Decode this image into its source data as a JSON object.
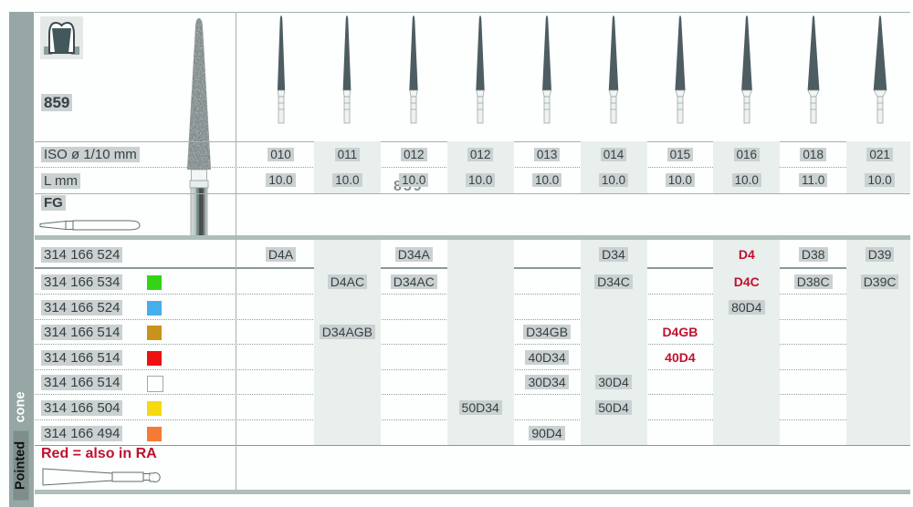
{
  "sidebar": {
    "word_top": "cone",
    "word_bottom": "Pointed"
  },
  "header": {
    "code": "859",
    "ghost_code": "859"
  },
  "row_labels": {
    "iso": "ISO ø 1/10 mm",
    "length": "L mm",
    "shank": "FG"
  },
  "columns": [
    {
      "iso": "010",
      "l": "10.0"
    },
    {
      "iso": "011",
      "l": "10.0"
    },
    {
      "iso": "012",
      "l": "10.0"
    },
    {
      "iso": "012",
      "l": "10.0"
    },
    {
      "iso": "013",
      "l": "10.0"
    },
    {
      "iso": "014",
      "l": "10.0"
    },
    {
      "iso": "015",
      "l": "10.0"
    },
    {
      "iso": "016",
      "l": "10.0"
    },
    {
      "iso": "018",
      "l": "11.0"
    },
    {
      "iso": "021",
      "l": "10.0"
    }
  ],
  "rows": [
    {
      "order": "314 166 524",
      "chip": null,
      "cells": [
        {
          "col": 1,
          "text": "D4A",
          "red": false
        },
        {
          "col": 3,
          "text": "D34A",
          "red": false
        },
        {
          "col": 6,
          "text": "D34",
          "red": false
        },
        {
          "col": 8,
          "text": "D4",
          "red": true
        },
        {
          "col": 9,
          "text": "D38",
          "red": false
        },
        {
          "col": 10,
          "text": "D39",
          "red": false
        }
      ]
    },
    {
      "order": "314 166 534",
      "chip": "#33d414",
      "cells": [
        {
          "col": 2,
          "text": "D4AC",
          "red": false
        },
        {
          "col": 3,
          "text": "D34AC",
          "red": false
        },
        {
          "col": 6,
          "text": "D34C",
          "red": false
        },
        {
          "col": 8,
          "text": "D4C",
          "red": true
        },
        {
          "col": 9,
          "text": "D38C",
          "red": false
        },
        {
          "col": 10,
          "text": "D39C",
          "red": false
        }
      ]
    },
    {
      "order": "314 166 524",
      "chip": "#46aee8",
      "cells": [
        {
          "col": 8,
          "text": "80D4",
          "red": false
        }
      ]
    },
    {
      "order": "314 166 514",
      "chip": "#c8921c",
      "cells": [
        {
          "col": 2,
          "text": "D34AGB",
          "red": false
        },
        {
          "col": 5,
          "text": "D34GB",
          "red": false
        },
        {
          "col": 7,
          "text": "D4GB",
          "red": true
        }
      ]
    },
    {
      "order": "314 166 514",
      "chip": "#ee1111",
      "cells": [
        {
          "col": 5,
          "text": "40D34",
          "red": false
        },
        {
          "col": 7,
          "text": "40D4",
          "red": true
        }
      ]
    },
    {
      "order": "314 166 514",
      "chip": "#ffffff",
      "cells": [
        {
          "col": 5,
          "text": "30D34",
          "red": false
        },
        {
          "col": 6,
          "text": "30D4",
          "red": false
        }
      ]
    },
    {
      "order": "314 166 504",
      "chip": "#f6d90f",
      "cells": [
        {
          "col": 4,
          "text": "50D34",
          "red": false
        },
        {
          "col": 6,
          "text": "50D4",
          "red": false
        }
      ]
    },
    {
      "order": "314 166 494",
      "chip": "#f57a36",
      "cells": [
        {
          "col": 5,
          "text": "90D4",
          "red": false
        }
      ]
    }
  ],
  "note": {
    "text": "Red = also in RA"
  },
  "colors": {
    "red": "#c0112f",
    "stripe": "#e9efec",
    "sidebar": "#96a7a5",
    "highlight": "#cbd1d1",
    "chip_border": "#9fa9a9",
    "line": "#a3b2ae",
    "line_dark": "#8b9898",
    "line_thick": "#aebeb8",
    "text": "#353f44",
    "bur_head": "#4e5d61"
  }
}
